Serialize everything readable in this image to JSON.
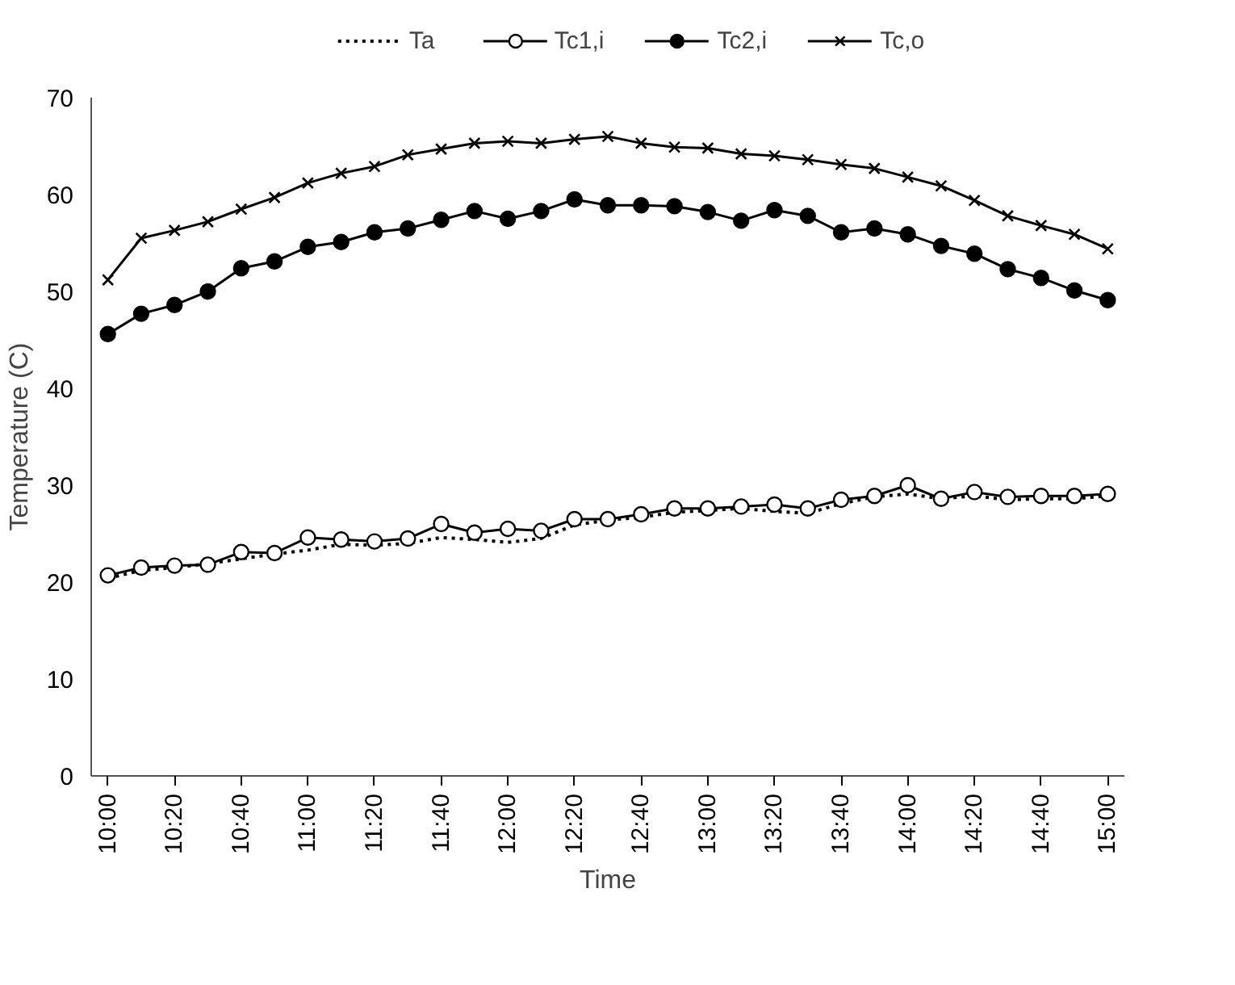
{
  "chart_data": {
    "type": "line",
    "xlabel": "Time",
    "ylabel": "Temperature (C)",
    "categories": [
      "10:00",
      null,
      "10:20",
      null,
      "10:40",
      null,
      "11:00",
      null,
      "11:20",
      null,
      "11:40",
      null,
      "12:00",
      null,
      "12:20",
      null,
      "12:40",
      null,
      "13:00",
      null,
      "13:20",
      null,
      "13:40",
      null,
      "14:00",
      null,
      "14:20",
      null,
      "14:40",
      null,
      "15:00"
    ],
    "ylim": [
      0,
      70
    ],
    "yticks": [
      0,
      10,
      20,
      30,
      40,
      50,
      60,
      70
    ],
    "grid": false,
    "legend": "top",
    "series": [
      {
        "name": "Ta",
        "color": "#000000",
        "marker": "none",
        "line_style": "dotted",
        "values": [
          20.4,
          21.2,
          21.5,
          21.9,
          22.4,
          22.9,
          23.3,
          23.9,
          23.8,
          24.0,
          24.6,
          24.4,
          24.1,
          24.5,
          25.9,
          26.4,
          26.7,
          27.2,
          27.4,
          27.6,
          27.3,
          27.1,
          28.1,
          28.8,
          29.1,
          28.6,
          28.9,
          28.5,
          28.6,
          28.6,
          28.9
        ]
      },
      {
        "name": "Tc1,i",
        "color": "#000000",
        "marker": "circle_open",
        "line_style": "solid",
        "values": [
          20.7,
          21.5,
          21.7,
          21.8,
          23.1,
          23.0,
          24.6,
          24.4,
          24.2,
          24.5,
          26.0,
          25.1,
          25.5,
          25.3,
          26.5,
          26.5,
          27.0,
          27.6,
          27.6,
          27.8,
          28.0,
          27.6,
          28.5,
          28.9,
          30.0,
          28.6,
          29.3,
          28.8,
          28.9,
          28.9,
          29.1
        ]
      },
      {
        "name": "Tc2,i",
        "color": "#000000",
        "marker": "circle",
        "line_style": "solid",
        "values": [
          45.6,
          47.7,
          48.6,
          50.0,
          52.4,
          53.1,
          54.6,
          55.1,
          56.1,
          56.5,
          57.4,
          58.3,
          57.5,
          58.3,
          59.5,
          58.9,
          58.9,
          58.8,
          58.2,
          57.3,
          58.4,
          57.8,
          56.1,
          56.5,
          55.9,
          54.7,
          53.9,
          52.3,
          51.4,
          50.1,
          49.1
        ]
      },
      {
        "name": "Tc,o",
        "color": "#000000",
        "marker": "cross",
        "line_style": "solid",
        "values": [
          51.2,
          55.5,
          56.3,
          57.2,
          58.5,
          59.7,
          61.2,
          62.2,
          62.9,
          64.1,
          64.7,
          65.3,
          65.5,
          65.3,
          65.7,
          66.0,
          65.3,
          64.9,
          64.8,
          64.2,
          64.0,
          63.6,
          63.1,
          62.7,
          61.8,
          60.9,
          59.4,
          57.8,
          56.8,
          55.9,
          54.4
        ]
      }
    ]
  }
}
